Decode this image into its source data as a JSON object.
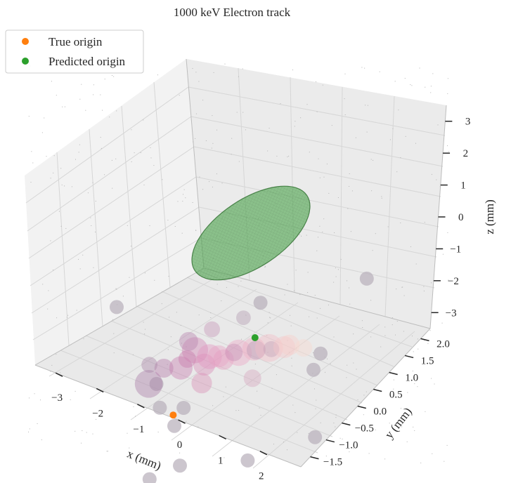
{
  "chart_data": {
    "type": "scatter",
    "projection": "3d",
    "title": "1000 keV Electron track",
    "xlabel": "x (mm)",
    "ylabel": "y (mm)",
    "zlabel": "z (mm)",
    "xlim": [
      -3.5,
      3.0
    ],
    "ylim": [
      -1.8,
      2.3
    ],
    "zlim": [
      -3.5,
      3.5
    ],
    "x_ticks": [
      -3,
      -2,
      -1,
      0,
      1,
      2
    ],
    "y_ticks": [
      -1.5,
      -1.0,
      -0.5,
      0.0,
      0.5,
      1.0,
      1.5,
      2.0
    ],
    "z_ticks": [
      -3,
      -2,
      -1,
      0,
      1,
      2,
      3
    ],
    "x_tick_labels": [
      "−3",
      "−2",
      "−1",
      "0",
      "1",
      "2"
    ],
    "y_tick_labels": [
      "−1.5",
      "−1.0",
      "−0.5",
      "0.0",
      "0.5",
      "1.0",
      "1.5",
      "2.0"
    ],
    "z_tick_labels": [
      "−3",
      "−2",
      "−1",
      "0",
      "1",
      "2",
      "3"
    ],
    "grid": true,
    "legend": {
      "placement": "upper-left",
      "entries": [
        {
          "label": "True origin",
          "color": "#ff7f0e"
        },
        {
          "label": "Predicted origin",
          "color": "#2ca02c"
        }
      ]
    },
    "colors": {
      "true_origin": "#ff7f0e",
      "predicted_origin": "#2ca02c",
      "ellipsoid": "#3f9d3f",
      "noise_hits": "#b8b0bb"
    },
    "true_origin": {
      "x": -0.6,
      "y": -0.4,
      "z": -1.9
    },
    "predicted_origin": {
      "x": 0.9,
      "y": 0.3,
      "z": 0.85
    },
    "uncertainty_ellipsoid": {
      "center": {
        "x": 0.9,
        "y": 0.3,
        "z": 0.85
      },
      "extent_along_track_mm": 2.3,
      "extent_across_track_mm": 0.7,
      "color": "#3f9d3f"
    },
    "track_hits": [
      {
        "x": -1.2,
        "y": -0.4,
        "z": -1.2,
        "size": 3.8,
        "color": "#a97ba7"
      },
      {
        "x": -0.9,
        "y": -0.3,
        "z": -0.6,
        "size": 2.6,
        "color": "#b57aa9"
      },
      {
        "x": -0.7,
        "y": 0.0,
        "z": -0.8,
        "size": 3.2,
        "color": "#c77fb1"
      },
      {
        "x": -0.5,
        "y": 0.2,
        "z": -0.3,
        "size": 3.6,
        "color": "#d286b4"
      },
      {
        "x": -0.4,
        "y": -0.2,
        "z": -0.1,
        "size": 2.4,
        "color": "#c779ac"
      },
      {
        "x": -0.2,
        "y": 0.1,
        "z": -0.5,
        "size": 3.0,
        "color": "#d98cb8"
      },
      {
        "x": 0.0,
        "y": 0.0,
        "z": 0.0,
        "size": 3.4,
        "color": "#e395c0"
      },
      {
        "x": 0.2,
        "y": 0.2,
        "z": -0.2,
        "size": 2.8,
        "color": "#e59cbf"
      },
      {
        "x": 0.3,
        "y": -0.1,
        "z": 0.3,
        "size": 3.0,
        "color": "#e8a1c3"
      },
      {
        "x": 0.5,
        "y": 0.3,
        "z": 0.1,
        "size": 3.6,
        "color": "#eda8c5"
      },
      {
        "x": 0.6,
        "y": 0.0,
        "z": 0.5,
        "size": 2.4,
        "color": "#c68fb4"
      },
      {
        "x": 0.8,
        "y": 0.4,
        "z": 0.3,
        "size": 3.2,
        "color": "#efb1c6"
      },
      {
        "x": 1.0,
        "y": 0.2,
        "z": 0.6,
        "size": 2.6,
        "color": "#b89ab4"
      },
      {
        "x": 1.1,
        "y": 0.5,
        "z": 0.4,
        "size": 3.8,
        "color": "#f2bcc6"
      },
      {
        "x": 1.3,
        "y": 0.3,
        "z": 0.7,
        "size": 2.2,
        "color": "#c4a3b7"
      },
      {
        "x": 1.4,
        "y": 0.6,
        "z": 0.5,
        "size": 3.0,
        "color": "#f5c5c8"
      },
      {
        "x": 1.6,
        "y": 0.5,
        "z": 0.8,
        "size": 2.8,
        "color": "#f7cfcb"
      },
      {
        "x": 1.8,
        "y": 0.7,
        "z": 0.6,
        "size": 2.4,
        "color": "#f9d8cf"
      },
      {
        "x": 0.4,
        "y": 0.6,
        "z": 0.9,
        "size": 2.0,
        "color": "#b39ab1"
      },
      {
        "x": -0.8,
        "y": 0.4,
        "z": -0.4,
        "size": 2.6,
        "color": "#b884ae"
      },
      {
        "x": -0.3,
        "y": 0.5,
        "z": 0.2,
        "size": 2.2,
        "color": "#c696b8"
      },
      {
        "x": 1.2,
        "y": -0.2,
        "z": 0.2,
        "size": 2.4,
        "color": "#d7a6bf"
      },
      {
        "x": 0.1,
        "y": -0.4,
        "z": -0.4,
        "size": 2.8,
        "color": "#d98fb6"
      },
      {
        "x": -1.4,
        "y": -0.1,
        "z": -1.0,
        "size": 2.2,
        "color": "#a986a8"
      }
    ],
    "noise_hits": [
      {
        "x": -3.0,
        "y": 1.0,
        "z": -1.2
      },
      {
        "x": 2.7,
        "y": 1.6,
        "z": 2.5
      },
      {
        "x": 2.3,
        "y": 0.4,
        "z": -1.8
      },
      {
        "x": 1.3,
        "y": -0.5,
        "z": -2.2
      },
      {
        "x": 0.0,
        "y": -1.0,
        "z": -2.6
      },
      {
        "x": -0.6,
        "y": -1.2,
        "z": -3.2
      },
      {
        "x": -1.0,
        "y": -0.3,
        "z": -2.0
      },
      {
        "x": -0.5,
        "y": -0.5,
        "z": -2.1
      },
      {
        "x": -1.3,
        "y": 0.0,
        "z": -1.7
      },
      {
        "x": -0.2,
        "y": -0.6,
        "z": -1.2
      },
      {
        "x": 1.9,
        "y": 0.9,
        "z": -0.3
      },
      {
        "x": 2.0,
        "y": 1.0,
        "z": 0.2
      },
      {
        "x": 0.6,
        "y": 0.9,
        "z": 1.2
      }
    ]
  }
}
